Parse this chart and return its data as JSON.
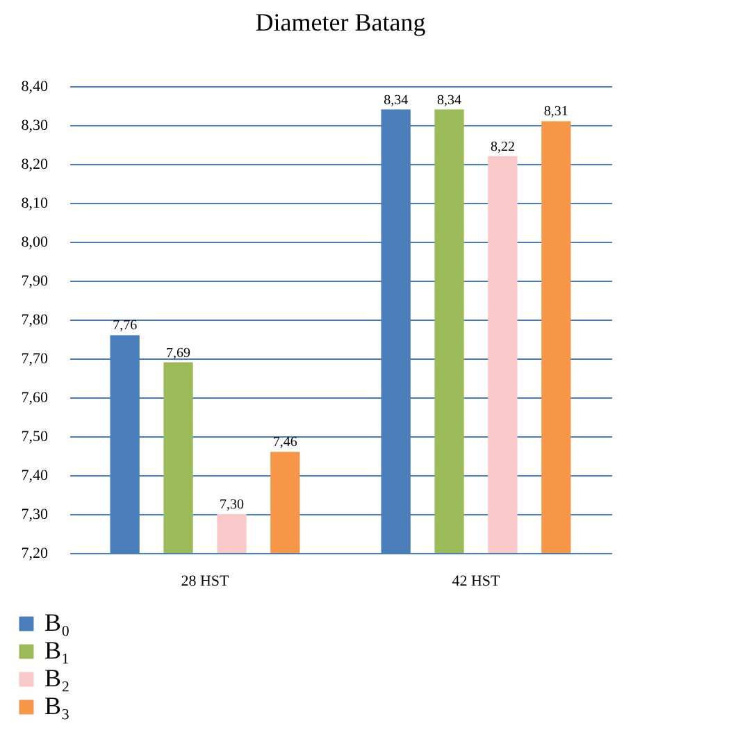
{
  "chart_data": {
    "type": "bar",
    "title": "Diameter Batang",
    "categories": [
      "28 HST",
      "42 HST"
    ],
    "series": [
      {
        "name": "B₀",
        "color": "#4a7ebb",
        "values": [
          7.76,
          8.34
        ],
        "value_labels": [
          "7,76",
          "8,34"
        ]
      },
      {
        "name": "B₁",
        "color": "#9bbb59",
        "values": [
          7.69,
          8.34
        ],
        "value_labels": [
          "7,69",
          "8,34"
        ]
      },
      {
        "name": "B₂",
        "color": "#f9c8c8",
        "values": [
          7.3,
          8.22
        ],
        "value_labels": [
          "7,30",
          "8,22"
        ]
      },
      {
        "name": "B₃",
        "color": "#f79646",
        "values": [
          7.46,
          8.31
        ],
        "value_labels": [
          "7,46",
          "8,31"
        ]
      }
    ],
    "ylim": [
      7.2,
      8.4
    ],
    "yticks": [
      {
        "value": 7.2,
        "label": "7,20"
      },
      {
        "value": 7.3,
        "label": "7,30"
      },
      {
        "value": 7.4,
        "label": "7,40"
      },
      {
        "value": 7.5,
        "label": "7,50"
      },
      {
        "value": 7.6,
        "label": "7,60"
      },
      {
        "value": 7.7,
        "label": "7,70"
      },
      {
        "value": 7.8,
        "label": "7,80"
      },
      {
        "value": 7.9,
        "label": "7,90"
      },
      {
        "value": 8.0,
        "label": "8,00"
      },
      {
        "value": 8.1,
        "label": "8,10"
      },
      {
        "value": 8.2,
        "label": "8,20"
      },
      {
        "value": 8.3,
        "label": "8,30"
      },
      {
        "value": 8.4,
        "label": "8,40"
      }
    ],
    "grid": "y",
    "legend": "bottom left"
  }
}
